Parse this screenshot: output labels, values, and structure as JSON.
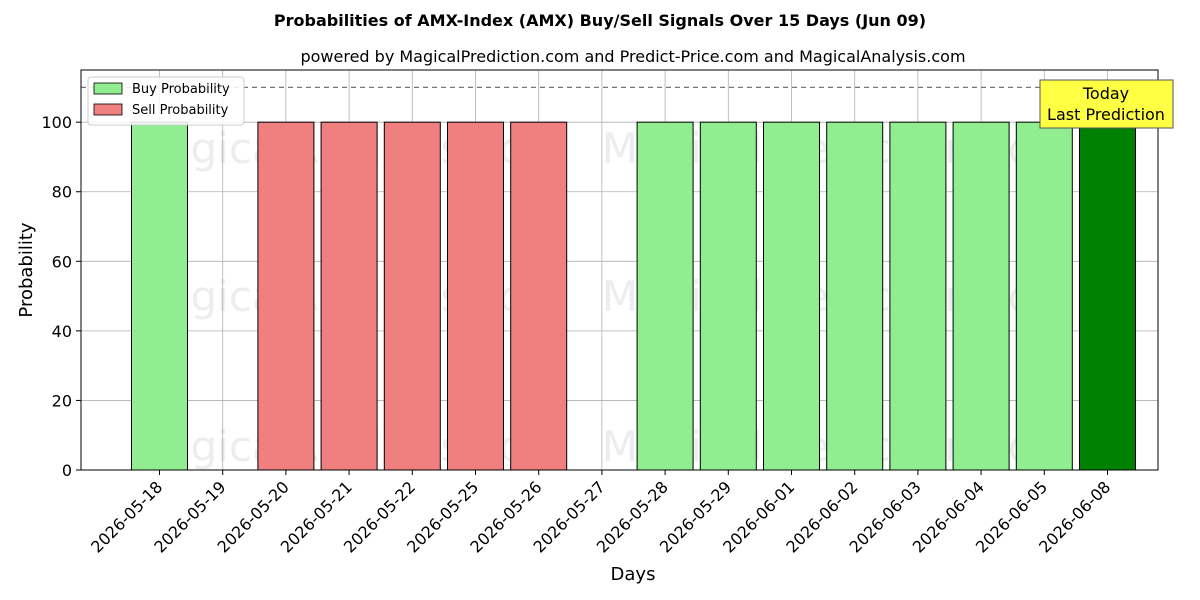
{
  "chart_data": {
    "type": "bar",
    "title": "Probabilities of AMX-Index (AMX) Buy/Sell Signals Over 15 Days (Jun 09)",
    "subtitle": "powered by MagicalPrediction.com and Predict-Price.com and MagicalAnalysis.com",
    "xlabel": "Days",
    "ylabel": "Probability",
    "ylim": [
      0,
      115
    ],
    "yticks": [
      0,
      20,
      40,
      60,
      80,
      100
    ],
    "grid": true,
    "reference_line": 110,
    "legend_position": "top-left",
    "categories": [
      "2026-05-18",
      "2026-05-19",
      "2026-05-20",
      "2026-05-21",
      "2026-05-22",
      "2026-05-25",
      "2026-05-26",
      "2026-05-27",
      "2026-05-28",
      "2026-05-29",
      "2026-06-01",
      "2026-06-02",
      "2026-06-03",
      "2026-06-04",
      "2026-06-05",
      "2026-06-08"
    ],
    "series": [
      {
        "name": "Buy Probability",
        "color": "#90ee90",
        "values": [
          100,
          0,
          0,
          0,
          0,
          0,
          0,
          0,
          100,
          100,
          100,
          100,
          100,
          100,
          100,
          100
        ]
      },
      {
        "name": "Sell Probability",
        "color": "#f08080",
        "values": [
          0,
          0,
          100,
          100,
          100,
          100,
          100,
          0,
          0,
          0,
          0,
          0,
          0,
          0,
          0,
          0
        ]
      }
    ],
    "highlight": {
      "index": 15,
      "color": "#008000"
    },
    "annotation": {
      "line1": "Today",
      "line2": "Last Prediction",
      "color": "#ffff44"
    },
    "watermarks": [
      "MagicalAnalysis.com",
      "MagicalPrediction.com"
    ]
  }
}
